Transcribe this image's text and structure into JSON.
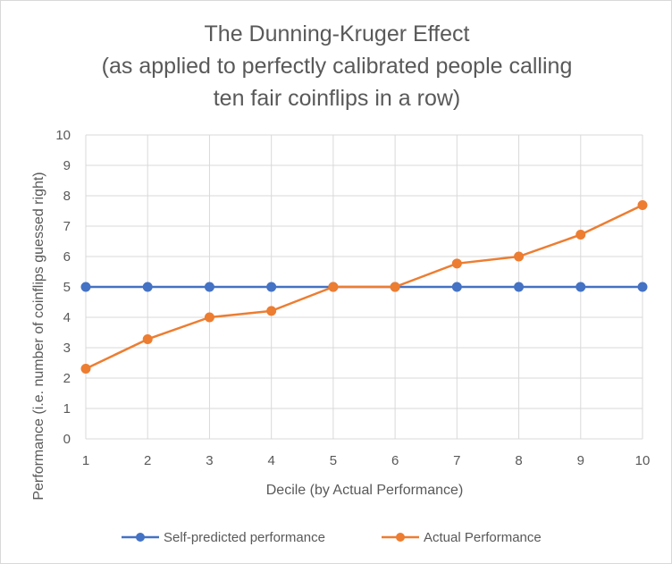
{
  "chart_data": {
    "type": "line",
    "title_lines": [
      "The Dunning-Kruger Effect",
      "(as applied to perfectly calibrated people calling",
      "ten fair coinflips in a row)"
    ],
    "xlabel": "Decile (by Actual Performance)",
    "ylabel": "Performance (i.e. number of coinflips guessed right)",
    "categories": [
      "1",
      "2",
      "3",
      "4",
      "5",
      "6",
      "7",
      "8",
      "9",
      "10"
    ],
    "ylim": [
      0,
      10
    ],
    "yticks": [
      0,
      1,
      2,
      3,
      4,
      5,
      6,
      7,
      8,
      9,
      10
    ],
    "grid": true,
    "legend_position": "bottom",
    "series": [
      {
        "name": "Self-predicted performance",
        "color": "#4472c4",
        "values": [
          5,
          5,
          5,
          5,
          5,
          5,
          5,
          5,
          5,
          5
        ]
      },
      {
        "name": "Actual Performance",
        "color": "#ed7d31",
        "values": [
          2.31,
          3.28,
          4.0,
          4.21,
          5.0,
          5.0,
          5.77,
          6.0,
          6.72,
          7.69
        ]
      }
    ]
  }
}
